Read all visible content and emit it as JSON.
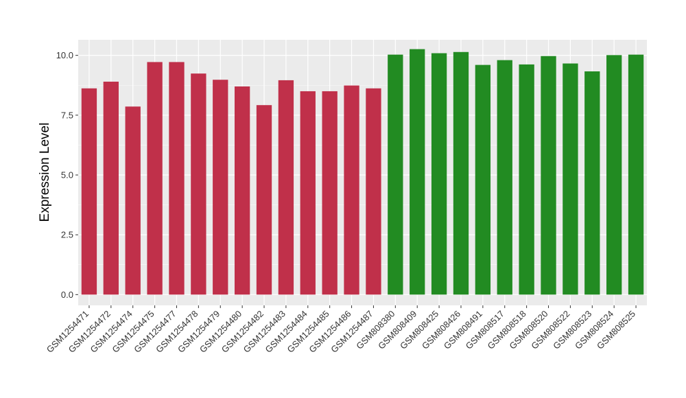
{
  "chart_data": {
    "type": "bar",
    "title": "",
    "xlabel": "",
    "ylabel": "Expression Level",
    "ylim": [
      -0.45,
      10.65
    ],
    "yticks": [
      0.0,
      2.5,
      5.0,
      7.5,
      10.0
    ],
    "ytick_labels": [
      "0.0",
      "2.5",
      "5.0",
      "7.5",
      "10.0"
    ],
    "grid": true,
    "legend": "none",
    "background_color": "#ebebeb",
    "grid_color": "#ffffff",
    "categories": [
      "GSM1254471",
      "GSM1254472",
      "GSM1254474",
      "GSM1254475",
      "GSM1254477",
      "GSM1254478",
      "GSM1254479",
      "GSM1254480",
      "GSM1254482",
      "GSM1254483",
      "GSM1254484",
      "GSM1254485",
      "GSM1254486",
      "GSM1254487",
      "GSM808380",
      "GSM808409",
      "GSM808425",
      "GSM808426",
      "GSM808491",
      "GSM808517",
      "GSM808518",
      "GSM808520",
      "GSM808522",
      "GSM808523",
      "GSM808524",
      "GSM808525"
    ],
    "values": [
      8.62,
      8.9,
      7.86,
      9.72,
      9.72,
      9.24,
      8.98,
      8.7,
      7.92,
      8.96,
      8.5,
      8.5,
      8.74,
      8.62,
      10.03,
      10.26,
      10.09,
      10.14,
      9.6,
      9.8,
      9.62,
      9.97,
      9.66,
      9.33,
      10.01,
      10.03
    ],
    "bar_colors": [
      "#c0304a",
      "#c0304a",
      "#c0304a",
      "#c0304a",
      "#c0304a",
      "#c0304a",
      "#c0304a",
      "#c0304a",
      "#c0304a",
      "#c0304a",
      "#c0304a",
      "#c0304a",
      "#c0304a",
      "#c0304a",
      "#228b22",
      "#228b22",
      "#228b22",
      "#228b22",
      "#228b22",
      "#228b22",
      "#228b22",
      "#228b22",
      "#228b22",
      "#228b22",
      "#228b22",
      "#228b22"
    ]
  }
}
